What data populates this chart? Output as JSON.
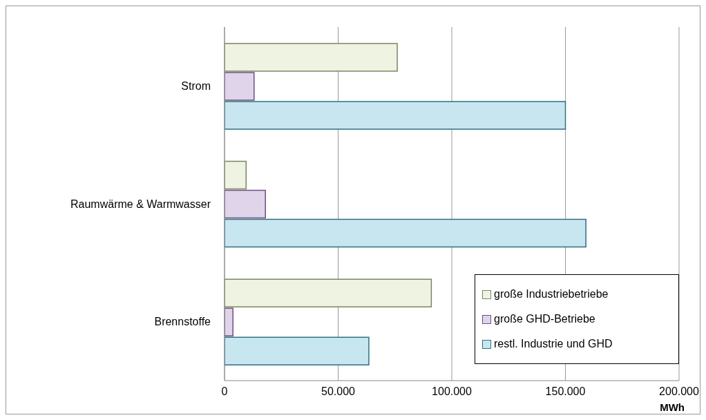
{
  "chart_data": {
    "type": "bar",
    "orientation": "horizontal",
    "xlabel": "MWh",
    "categories": [
      "Strom",
      "Raumwärme & Warmwasser",
      "Brennstoffe"
    ],
    "series": [
      {
        "name": "große Industriebetriebe",
        "color": "#eef3e2",
        "values": [
          76000,
          9500,
          91000
        ]
      },
      {
        "name": "große GHD-Betriebe",
        "color": "#e0d4ea",
        "values": [
          13000,
          18000,
          3700
        ]
      },
      {
        "name": "restl. Industrie und GHD",
        "color": "#c8e6ef",
        "values": [
          150000,
          159000,
          63500
        ]
      }
    ],
    "xlim": [
      0,
      200000
    ],
    "xticks": [
      0,
      {
        "value": 50000,
        "label": "50.000"
      },
      {
        "value": 100000,
        "label": "100.000"
      },
      {
        "value": 150000,
        "label": "150.000"
      },
      {
        "value": 200000,
        "label": "200.000"
      }
    ],
    "grid": "x",
    "legend": "bottom right"
  }
}
